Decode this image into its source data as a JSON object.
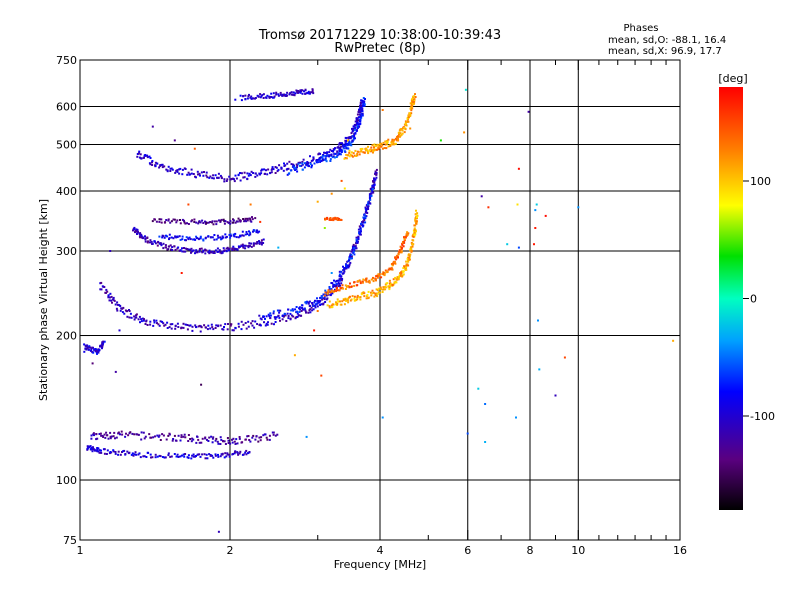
{
  "chart_data": {
    "type": "scatter",
    "title": "Tromsø 20171229 10:38:00-10:39:43",
    "subtitle": "RwPretec (8p)",
    "xlabel": "Frequency [MHz]",
    "ylabel": "Stationary phase Virtual Height [km]",
    "x_scale": "log",
    "y_scale": "log",
    "xlim": [
      1,
      16
    ],
    "ylim": [
      75,
      750
    ],
    "x_ticks": [
      1,
      2,
      4,
      6,
      8,
      10,
      16
    ],
    "x_tick_labels": [
      "1",
      "2",
      "4",
      "6",
      "8",
      "10",
      "16"
    ],
    "x_minor_ticks": [
      3,
      5,
      7,
      9,
      11,
      12,
      13,
      14,
      15
    ],
    "y_ticks": [
      75,
      100,
      200,
      300,
      400,
      500,
      600,
      750
    ],
    "y_tick_labels": [
      "75",
      "100",
      "200",
      "300",
      "400",
      "500",
      "600",
      "750"
    ],
    "x_gridlines": [
      2,
      4,
      6,
      8,
      10
    ],
    "y_gridlines": [
      100,
      200,
      300,
      400,
      500,
      600
    ],
    "grid": true,
    "stats": {
      "heading": "Phases",
      "line1": "mean, sd,O: -88.1, 16.4",
      "line2": "mean, sd,X:  96.9, 17.7"
    },
    "colorbar": {
      "label": "[deg]",
      "range": [
        -180,
        180
      ],
      "ticks": [
        100,
        0,
        -100
      ],
      "tick_labels": [
        "100",
        "0",
        "-100"
      ]
    },
    "traces": [
      {
        "segments": [
          [
            1.03,
            117,
            1.1,
            115,
            1.3,
            113,
            1.6,
            112,
            1.9,
            112,
            2.2,
            115
          ]
        ],
        "phase": -100,
        "spread": 2
      },
      {
        "segments": [
          [
            1.05,
            123,
            1.2,
            124,
            1.5,
            123,
            1.8,
            121,
            2.1,
            121,
            2.5,
            124
          ]
        ],
        "phase": -120,
        "spread": 3
      },
      {
        "segments": [
          [
            1.1,
            255,
            1.2,
            227,
            1.35,
            214,
            1.6,
            208,
            1.9,
            207,
            2.3,
            212,
            2.7,
            220,
            3.0,
            230,
            3.3,
            255,
            3.5,
            290,
            3.7,
            345,
            3.85,
            400,
            3.95,
            440
          ]
        ],
        "phase": -110,
        "spread": 3
      },
      {
        "segments": [
          [
            2.3,
            218,
            2.7,
            226,
            3.0,
            236,
            3.3,
            262,
            3.55,
            300,
            3.75,
            360,
            3.9,
            420
          ]
        ],
        "phase": -80,
        "spread": 3
      },
      {
        "segments": [
          [
            3.15,
            232,
            3.5,
            238,
            3.9,
            245,
            4.2,
            255,
            4.45,
            270,
            4.6,
            295,
            4.7,
            330,
            4.75,
            360
          ]
        ],
        "phase": 110,
        "spread": 3
      },
      {
        "segments": [
          [
            3.1,
            245,
            3.5,
            255,
            3.9,
            262,
            4.2,
            275,
            4.4,
            300,
            4.55,
            330
          ]
        ],
        "phase": 135,
        "spread": 2
      },
      {
        "segments": [
          [
            1.3,
            480,
            1.45,
            450,
            1.7,
            435,
            2.0,
            425,
            2.3,
            435,
            2.6,
            450,
            3.0,
            470,
            3.3,
            490,
            3.5,
            520,
            3.62,
            570,
            3.68,
            610
          ]
        ],
        "phase": -105,
        "spread": 3
      },
      {
        "segments": [
          [
            2.6,
            440,
            3.0,
            460,
            3.3,
            478,
            3.5,
            505,
            3.65,
            560,
            3.72,
            620
          ]
        ],
        "phase": -75,
        "spread": 3
      },
      {
        "segments": [
          [
            3.4,
            475,
            3.75,
            485,
            4.0,
            495,
            4.3,
            510,
            4.5,
            545,
            4.62,
            595,
            4.7,
            630
          ]
        ],
        "phase": 115,
        "spread": 3
      },
      {
        "segments": [
          [
            1.28,
            335,
            1.35,
            318,
            1.5,
            305,
            1.7,
            300,
            1.9,
            300,
            2.1,
            305,
            2.35,
            315
          ]
        ],
        "phase": -110,
        "spread": 2
      },
      {
        "segments": [
          [
            1.45,
            322,
            1.7,
            318,
            2.0,
            322,
            2.3,
            330
          ]
        ],
        "phase": -85,
        "spread": 2
      },
      {
        "segments": [
          [
            1.4,
            348,
            1.7,
            345,
            2.0,
            345,
            2.25,
            350
          ]
        ],
        "phase": -130,
        "spread": 2
      },
      {
        "segments": [
          [
            2.1,
            625,
            2.4,
            632,
            2.7,
            640,
            2.95,
            645
          ]
        ],
        "phase": -100,
        "spread": 2
      },
      {
        "segments": [
          [
            1.02,
            190,
            1.08,
            185,
            1.12,
            193
          ]
        ],
        "phase": -95,
        "spread": 2
      },
      {
        "segments": [
          [
            3.1,
            350,
            3.35,
            350
          ]
        ],
        "phase": 140,
        "spread": 1
      }
    ],
    "scattered_points": [
      [
        1.02,
        185,
        -90
      ],
      [
        1.06,
        175,
        -140
      ],
      [
        1.18,
        168,
        -120
      ],
      [
        1.2,
        205,
        -100
      ],
      [
        1.15,
        300,
        -110
      ],
      [
        1.4,
        545,
        -120
      ],
      [
        1.55,
        510,
        -130
      ],
      [
        1.7,
        490,
        140
      ],
      [
        1.5,
        440,
        -100
      ],
      [
        1.6,
        270,
        170
      ],
      [
        1.65,
        375,
        150
      ],
      [
        1.75,
        158,
        -150
      ],
      [
        1.9,
        78,
        -110
      ],
      [
        2.05,
        620,
        -90
      ],
      [
        2.2,
        375,
        130
      ],
      [
        2.3,
        345,
        160
      ],
      [
        2.5,
        305,
        -30
      ],
      [
        2.7,
        182,
        110
      ],
      [
        2.85,
        123,
        -40
      ],
      [
        3.0,
        380,
        110
      ],
      [
        3.2,
        395,
        120
      ],
      [
        3.35,
        420,
        145
      ],
      [
        3.4,
        405,
        90
      ],
      [
        3.1,
        335,
        60
      ],
      [
        3.0,
        225,
        130
      ],
      [
        2.95,
        205,
        170
      ],
      [
        3.05,
        165,
        150
      ],
      [
        3.2,
        270,
        -40
      ],
      [
        4.05,
        135,
        -40
      ],
      [
        5.3,
        510,
        40
      ],
      [
        5.9,
        530,
        120
      ],
      [
        5.95,
        650,
        -10
      ],
      [
        6.0,
        125,
        -60
      ],
      [
        6.3,
        155,
        -20
      ],
      [
        6.4,
        390,
        -120
      ],
      [
        6.5,
        144,
        -50
      ],
      [
        6.6,
        370,
        160
      ],
      [
        6.5,
        120,
        -30
      ],
      [
        7.2,
        310,
        -20
      ],
      [
        7.5,
        135,
        -40
      ],
      [
        7.55,
        375,
        90
      ],
      [
        7.6,
        305,
        -60
      ],
      [
        7.6,
        445,
        175
      ],
      [
        7.95,
        585,
        -120
      ],
      [
        8.15,
        310,
        170
      ],
      [
        8.2,
        335,
        170
      ],
      [
        8.2,
        365,
        -40
      ],
      [
        8.25,
        375,
        -20
      ],
      [
        8.3,
        215,
        -40
      ],
      [
        8.35,
        170,
        -30
      ],
      [
        8.6,
        355,
        175
      ],
      [
        9.0,
        150,
        -110
      ],
      [
        9.4,
        180,
        150
      ],
      [
        10.0,
        370,
        -40
      ],
      [
        15.5,
        195,
        110
      ],
      [
        4.05,
        590,
        130
      ],
      [
        4.6,
        540,
        120
      ],
      [
        3.9,
        500,
        100
      ],
      [
        3.45,
        510,
        110
      ]
    ]
  }
}
